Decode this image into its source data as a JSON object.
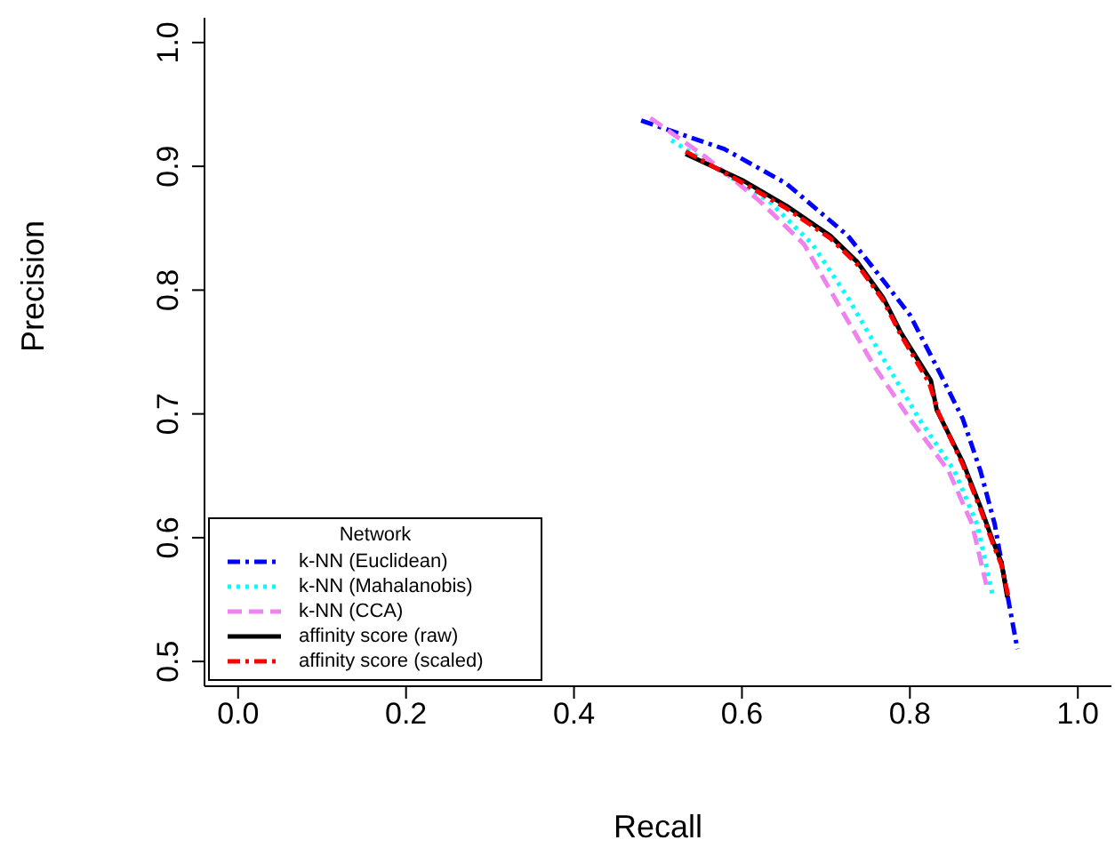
{
  "chart_data": {
    "type": "line",
    "xlabel": "Recall",
    "ylabel": "Precision",
    "legend_title": "Network",
    "xlim": [
      -0.04,
      1.04
    ],
    "ylim": [
      0.48,
      1.02
    ],
    "xticks": [
      {
        "value": 0,
        "label": "0.0"
      },
      0.2,
      0.4,
      0.6,
      0.8,
      {
        "value": 1,
        "label": "1.0"
      }
    ],
    "yticks": [
      0.5,
      0.6,
      0.7,
      0.8,
      0.9,
      {
        "value": 1,
        "label": "1.0"
      }
    ],
    "grid": false,
    "legend": "bottom left",
    "marker": "none",
    "series": [
      {
        "name": "k-NN (Euclidean)",
        "color": "#0000ff",
        "line_style": "dashdot",
        "x": [
          0.48,
          0.579,
          0.653,
          0.726,
          0.768,
          0.8,
          0.832,
          0.863,
          0.884,
          0.901,
          0.912,
          0.928
        ],
        "values": [
          0.937,
          0.914,
          0.886,
          0.844,
          0.808,
          0.78,
          0.738,
          0.696,
          0.654,
          0.611,
          0.569,
          0.51
        ]
      },
      {
        "name": "k-NN (Mahalanobis)",
        "color": "#00ffff",
        "line_style": "dotted",
        "x": [
          0.516,
          0.632,
          0.684,
          0.726,
          0.768,
          0.811,
          0.853,
          0.88,
          0.899
        ],
        "values": [
          0.921,
          0.872,
          0.837,
          0.794,
          0.745,
          0.696,
          0.654,
          0.611,
          0.552
        ]
      },
      {
        "name": "k-NN (CCA)",
        "color": "#ee82ee",
        "line_style": "dashed",
        "x": [
          0.491,
          0.558,
          0.621,
          0.674,
          0.716,
          0.758,
          0.8,
          0.846,
          0.874,
          0.891
        ],
        "values": [
          0.939,
          0.907,
          0.872,
          0.837,
          0.787,
          0.738,
          0.696,
          0.654,
          0.611,
          0.562
        ]
      },
      {
        "name": "affinity score (raw)",
        "color": "#000000",
        "line_style": "solid",
        "x": [
          0.533,
          0.6,
          0.653,
          0.705,
          0.737,
          0.768,
          0.789,
          0.825,
          0.832,
          0.863,
          0.884,
          0.899,
          0.909,
          0.916
        ],
        "values": [
          0.91,
          0.889,
          0.868,
          0.844,
          0.823,
          0.794,
          0.766,
          0.727,
          0.703,
          0.661,
          0.625,
          0.597,
          0.58,
          0.552
        ]
      },
      {
        "name": "affinity score (scaled)",
        "color": "#ff0000",
        "line_style": "dashdot",
        "x": [
          0.533,
          0.6,
          0.653,
          0.705,
          0.737,
          0.768,
          0.789,
          0.823,
          0.834,
          0.863,
          0.884,
          0.899,
          0.909,
          0.918
        ],
        "values": [
          0.912,
          0.887,
          0.866,
          0.842,
          0.821,
          0.792,
          0.764,
          0.725,
          0.701,
          0.659,
          0.623,
          0.595,
          0.578,
          0.55
        ]
      }
    ]
  }
}
